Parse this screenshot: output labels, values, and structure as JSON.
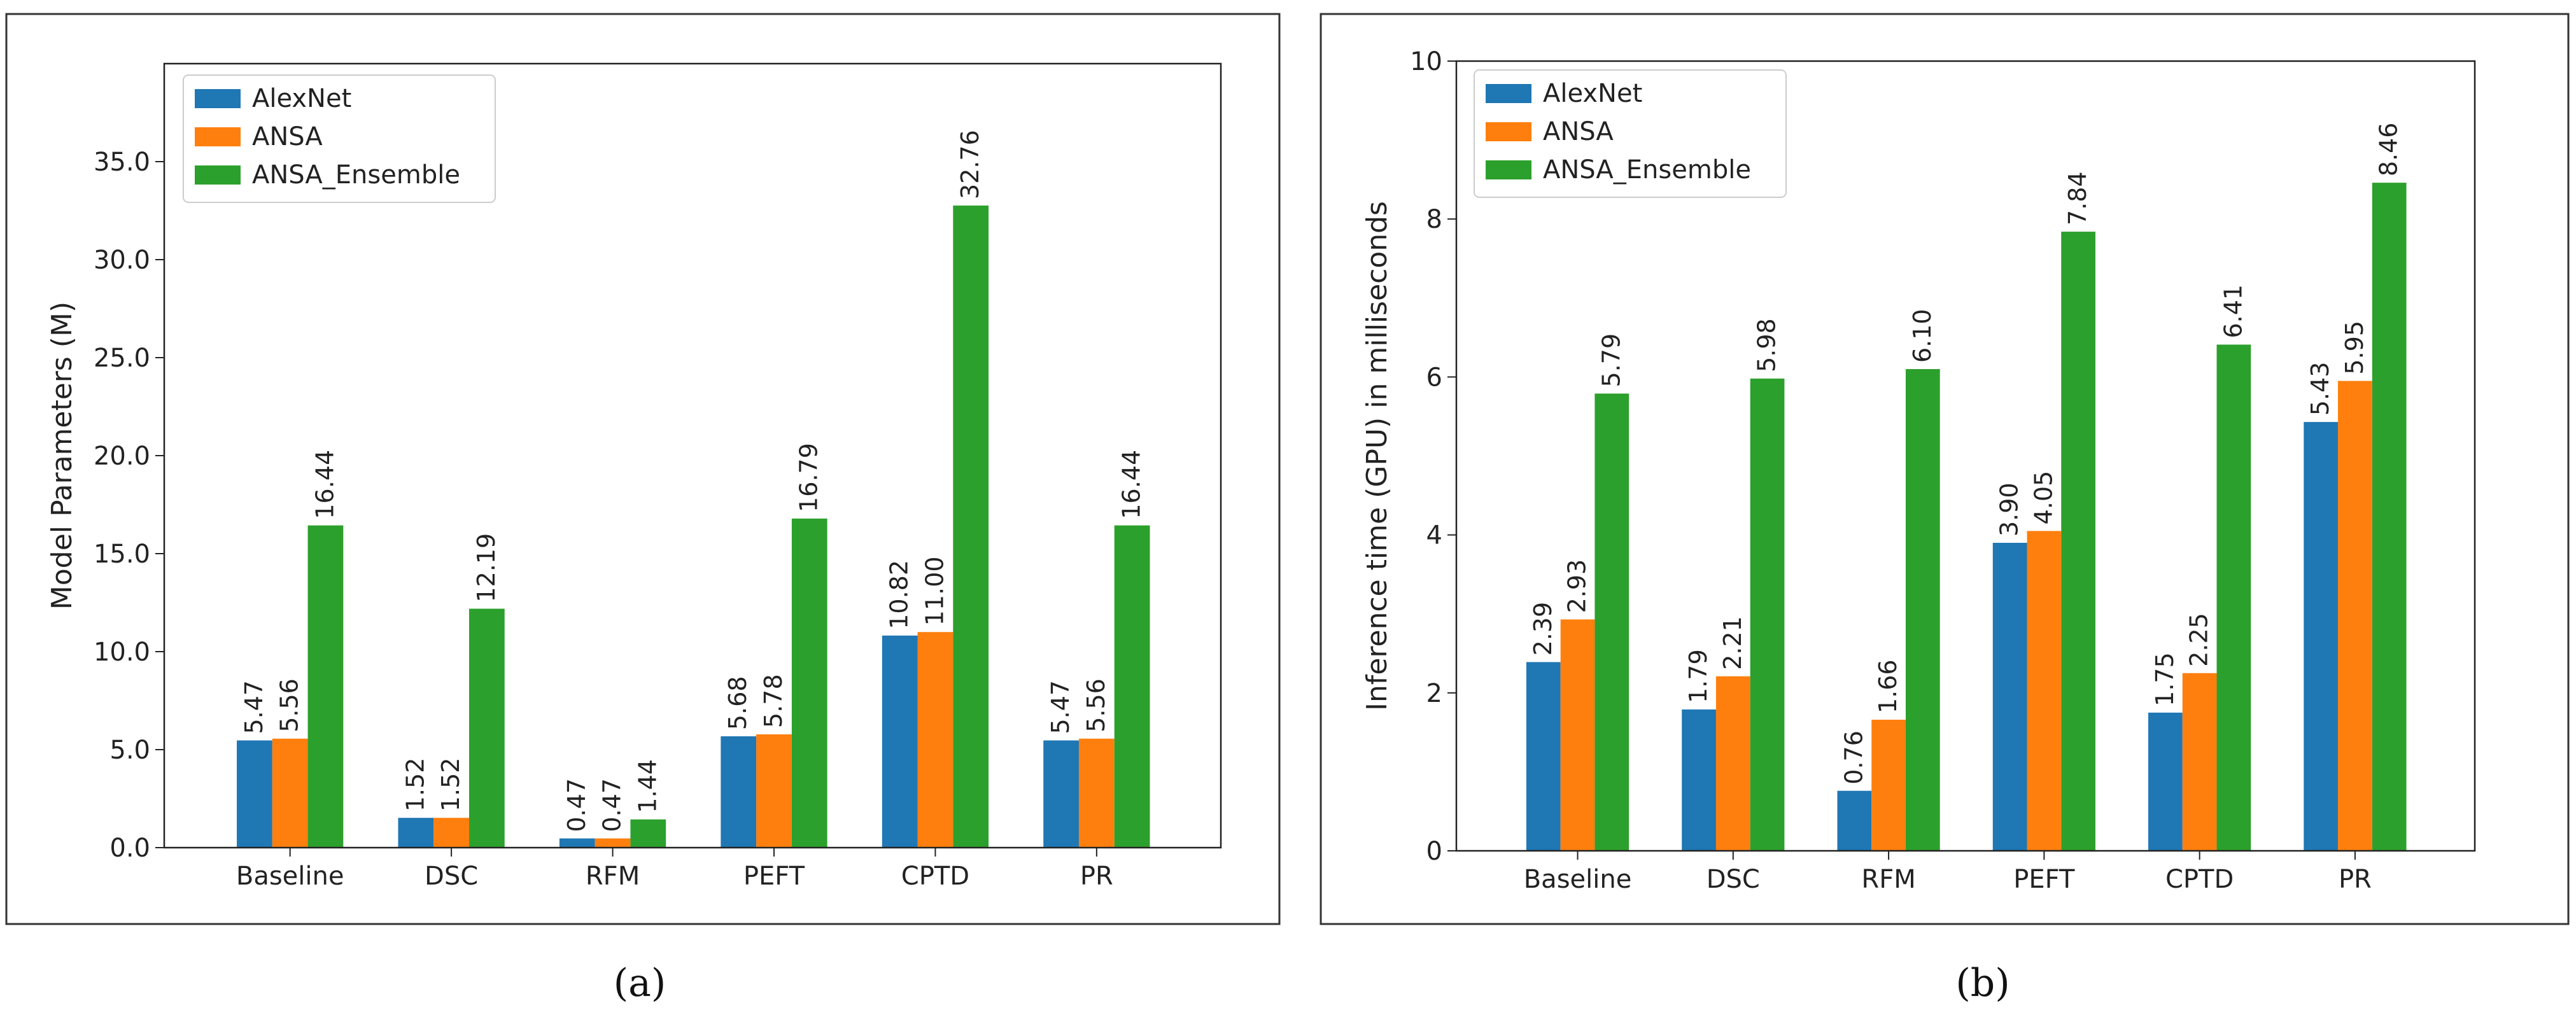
{
  "colors": {
    "AlexNet": "#1f77b4",
    "ANSA": "#ff7f0e",
    "ANSA_Ensemble": "#2ca02c"
  },
  "chart_data": [
    {
      "type": "bar",
      "caption": "(a)",
      "ylabel": "Model Parameters (M)",
      "xlabel": "",
      "ylim": [
        0,
        40
      ],
      "yticks": [
        "0.0",
        "5.0",
        "10.0",
        "15.0",
        "20.0",
        "25.0",
        "30.0",
        "35.0"
      ],
      "categories": [
        "Baseline",
        "DSC",
        "RFM",
        "PEFT",
        "CPTD",
        "PR"
      ],
      "legend_position": "top-left",
      "series": [
        {
          "name": "AlexNet",
          "values": [
            5.47,
            1.52,
            0.47,
            5.68,
            10.82,
            5.47
          ],
          "labels": [
            "5.47",
            "1.52",
            "0.47",
            "5.68",
            "10.82",
            "5.47"
          ]
        },
        {
          "name": "ANSA",
          "values": [
            5.56,
            1.52,
            0.47,
            5.78,
            11.0,
            5.56
          ],
          "labels": [
            "5.56",
            "1.52",
            "0.47",
            "5.78",
            "11.00",
            "5.56"
          ]
        },
        {
          "name": "ANSA_Ensemble",
          "values": [
            16.44,
            12.19,
            1.44,
            16.79,
            32.76,
            16.44
          ],
          "labels": [
            "16.44",
            "12.19",
            "1.44",
            "16.79",
            "32.76",
            "16.44"
          ]
        }
      ]
    },
    {
      "type": "bar",
      "caption": "(b)",
      "ylabel": "Inference time (GPU) in milliseconds",
      "xlabel": "",
      "ylim": [
        0,
        10
      ],
      "yticks": [
        "0",
        "2",
        "4",
        "6",
        "8",
        "10"
      ],
      "categories": [
        "Baseline",
        "DSC",
        "RFM",
        "PEFT",
        "CPTD",
        "PR"
      ],
      "legend_position": "top-left",
      "series": [
        {
          "name": "AlexNet",
          "values": [
            2.39,
            1.79,
            0.76,
            3.9,
            1.75,
            5.43
          ],
          "labels": [
            "2.39",
            "1.79",
            "0.76",
            "3.90",
            "1.75",
            "5.43"
          ]
        },
        {
          "name": "ANSA",
          "values": [
            2.93,
            2.21,
            1.66,
            4.05,
            2.25,
            5.95
          ],
          "labels": [
            "2.93",
            "2.21",
            "1.66",
            "4.05",
            "2.25",
            "5.95"
          ]
        },
        {
          "name": "ANSA_Ensemble",
          "values": [
            5.79,
            5.98,
            6.1,
            7.84,
            6.41,
            8.46
          ],
          "labels": [
            "5.79",
            "5.98",
            "6.10",
            "7.84",
            "6.41",
            "8.46"
          ]
        }
      ]
    }
  ]
}
